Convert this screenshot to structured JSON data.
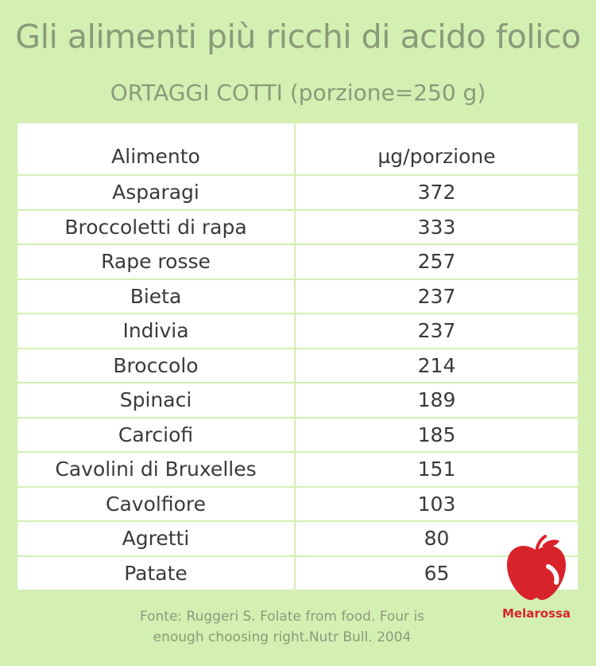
{
  "header": {
    "title": "Gli alimenti più ricchi di acido folico",
    "subtitle": "ORTAGGI COTTI (porzione=250 g)"
  },
  "table": {
    "columns": [
      "Alimento",
      "µg/porzione"
    ],
    "rows": [
      {
        "name": "Asparagi",
        "value": "372"
      },
      {
        "name": "Broccoletti di rapa",
        "value": "333"
      },
      {
        "name": "Rape rosse",
        "value": "257"
      },
      {
        "name": "Bieta",
        "value": "237"
      },
      {
        "name": "Indivia",
        "value": "237"
      },
      {
        "name": "Broccolo",
        "value": "214"
      },
      {
        "name": "Spinaci",
        "value": "189"
      },
      {
        "name": "Carciofi",
        "value": "185"
      },
      {
        "name": "Cavolini di Bruxelles",
        "value": "151"
      },
      {
        "name": "Cavolfiore",
        "value": "103"
      },
      {
        "name": "Agretti",
        "value": "80"
      },
      {
        "name": "Patate",
        "value": "65"
      }
    ]
  },
  "footer": {
    "source_line1": "Fonte: Ruggeri S. Folate from food. Four is",
    "source_line2": "enough choosing right.Nutr Bull. 2004"
  },
  "logo": {
    "text": "Melarossa",
    "icon": "apple-icon",
    "color": "#d8232a"
  }
}
